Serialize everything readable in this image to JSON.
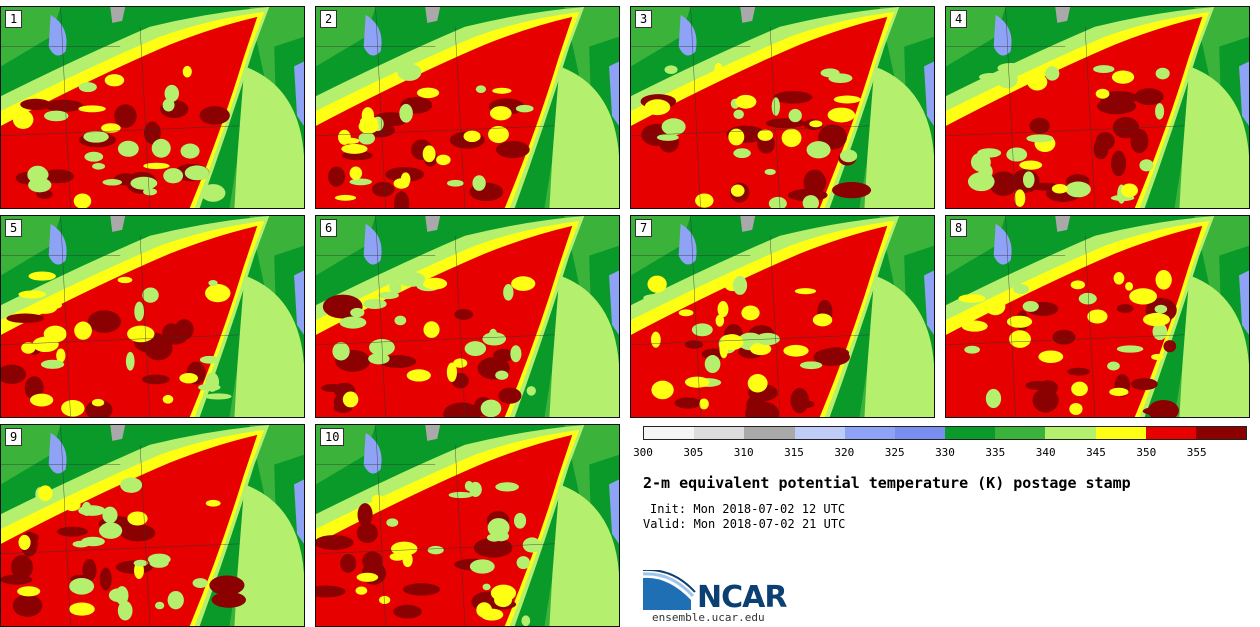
{
  "panels": [
    {
      "label": "1"
    },
    {
      "label": "2"
    },
    {
      "label": "3"
    },
    {
      "label": "4"
    },
    {
      "label": "5"
    },
    {
      "label": "6"
    },
    {
      "label": "7"
    },
    {
      "label": "8"
    },
    {
      "label": "9"
    },
    {
      "label": "10"
    }
  ],
  "colorbar": {
    "colors": [
      "#f5f5f5",
      "#dcdcdc",
      "#a9a9a9",
      "#c0ccf8",
      "#8ea3f5",
      "#7a8df0",
      "#0a9a2a",
      "#3bb33b",
      "#b4f06e",
      "#ffff14",
      "#e60000",
      "#8b0000"
    ],
    "ticks": [
      "300",
      "305",
      "310",
      "315",
      "320",
      "325",
      "330",
      "335",
      "340",
      "345",
      "350",
      "355"
    ]
  },
  "title": "2-m equivalent potential temperature (K) postage stamp",
  "init": "Init: Mon 2018-07-02 12 UTC",
  "valid": "Valid: Mon 2018-07-02 21 UTC",
  "logo": {
    "text": "NCAR",
    "url": "ensemble.ucar.edu"
  }
}
